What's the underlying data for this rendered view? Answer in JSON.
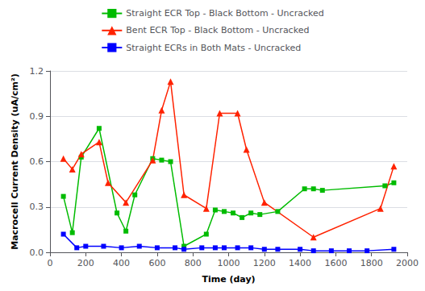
{
  "chart_data": {
    "type": "line",
    "xlabel": "Time (day)",
    "ylabel": "Macrocell Current Density (uA/cm²)",
    "xlim": [
      0,
      2000
    ],
    "ylim": [
      0.0,
      1.2
    ],
    "xticks": [
      0,
      200,
      400,
      600,
      800,
      1000,
      1200,
      1400,
      1600,
      1800,
      2000
    ],
    "yticks": [
      {
        "value": 0.0,
        "label": "0.0"
      },
      0.3,
      0.6,
      0.9,
      1.2
    ],
    "grid": true,
    "legend": "top",
    "series": [
      {
        "name": "Straight ECR Top - Black Bottom - Uncracked",
        "color": "#00bb00",
        "marker": "square",
        "x": [
          75,
          125,
          175,
          275,
          375,
          425,
          475,
          575,
          625,
          675,
          750,
          875,
          925,
          975,
          1025,
          1075,
          1125,
          1175,
          1275,
          1425,
          1475,
          1525,
          1875,
          1925
        ],
        "values": [
          0.37,
          0.13,
          0.63,
          0.82,
          0.26,
          0.14,
          0.38,
          0.62,
          0.61,
          0.6,
          0.04,
          0.12,
          0.28,
          0.27,
          0.26,
          0.23,
          0.26,
          0.25,
          0.27,
          0.42,
          0.42,
          0.41,
          0.44,
          0.46
        ]
      },
      {
        "name": "Bent ECR Top - Black Bottom - Uncracked",
        "color": "#ff2200",
        "marker": "triangle",
        "x": [
          75,
          125,
          175,
          275,
          325,
          425,
          575,
          625,
          675,
          750,
          875,
          950,
          1050,
          1100,
          1200,
          1475,
          1850,
          1925
        ],
        "values": [
          0.62,
          0.55,
          0.65,
          0.73,
          0.46,
          0.33,
          0.61,
          0.94,
          1.13,
          0.38,
          0.29,
          0.92,
          0.92,
          0.68,
          0.33,
          0.1,
          0.29,
          0.57
        ]
      },
      {
        "name": "Straight ECRs in Both Mats - Uncracked",
        "color": "#0000ff",
        "marker": "square",
        "x": [
          75,
          150,
          200,
          300,
          400,
          500,
          600,
          700,
          750,
          850,
          925,
          975,
          1050,
          1125,
          1200,
          1275,
          1400,
          1475,
          1575,
          1675,
          1775,
          1925
        ],
        "values": [
          0.12,
          0.03,
          0.04,
          0.04,
          0.03,
          0.04,
          0.03,
          0.03,
          0.02,
          0.03,
          0.03,
          0.03,
          0.03,
          0.03,
          0.02,
          0.02,
          0.02,
          0.01,
          0.01,
          0.01,
          0.01,
          0.02
        ]
      }
    ]
  }
}
